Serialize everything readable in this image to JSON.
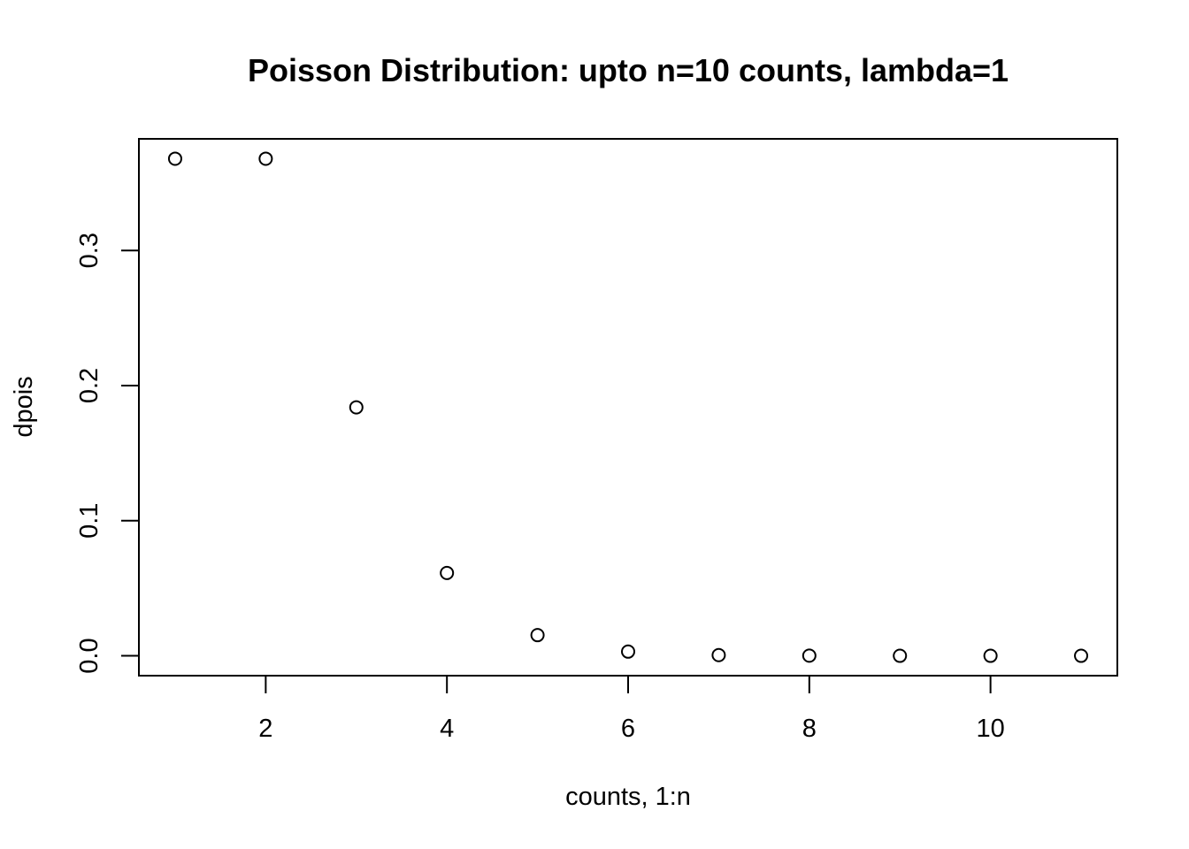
{
  "chart_data": {
    "type": "scatter",
    "title": "Poisson Distribution: upto n=10 counts, lambda=1",
    "xlabel": "counts, 1:n",
    "ylabel": "dpois",
    "x": [
      1,
      2,
      3,
      4,
      5,
      6,
      7,
      8,
      9,
      10,
      11
    ],
    "y": [
      0.3679,
      0.3679,
      0.1839,
      0.0613,
      0.0153,
      0.0031,
      0.0005,
      0.0001,
      0.0,
      0.0,
      0.0
    ],
    "xlim": [
      0.6,
      11.4
    ],
    "ylim": [
      -0.0147,
      0.3826
    ],
    "xticks": [
      2,
      4,
      6,
      8,
      10
    ],
    "xtick_labels": [
      "2",
      "4",
      "6",
      "8",
      "10"
    ],
    "yticks": [
      0.0,
      0.1,
      0.2,
      0.3
    ],
    "ytick_labels": [
      "0.0",
      "0.1",
      "0.2",
      "0.3"
    ],
    "marker": "open-circle",
    "grid": false,
    "legend": "none"
  }
}
